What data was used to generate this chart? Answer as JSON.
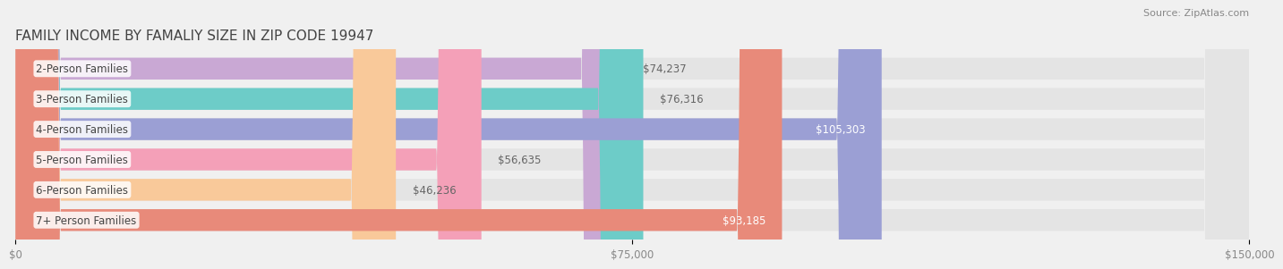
{
  "title": "FAMILY INCOME BY FAMALIY SIZE IN ZIP CODE 19947",
  "source": "Source: ZipAtlas.com",
  "categories": [
    "2-Person Families",
    "3-Person Families",
    "4-Person Families",
    "5-Person Families",
    "6-Person Families",
    "7+ Person Families"
  ],
  "values": [
    74237,
    76316,
    105303,
    56635,
    46236,
    93185
  ],
  "bar_colors": [
    "#c9a8d4",
    "#6dccc8",
    "#9b9fd4",
    "#f4a0b8",
    "#f9c99a",
    "#e88a7a"
  ],
  "label_colors": [
    "#666666",
    "#666666",
    "#ffffff",
    "#666666",
    "#666666",
    "#ffffff"
  ],
  "value_labels": [
    "$74,237",
    "$76,316",
    "$105,303",
    "$56,635",
    "$46,236",
    "$93,185"
  ],
  "xlim": [
    0,
    150000
  ],
  "xticks": [
    0,
    75000,
    150000
  ],
  "xticklabels": [
    "$0",
    "$75,000",
    "$150,000"
  ],
  "background_color": "#f0f0f0",
  "bar_background": "#e4e4e4",
  "title_fontsize": 11,
  "source_fontsize": 8,
  "label_fontsize": 8.5,
  "tick_fontsize": 8.5,
  "value_inside_threshold": 90000
}
